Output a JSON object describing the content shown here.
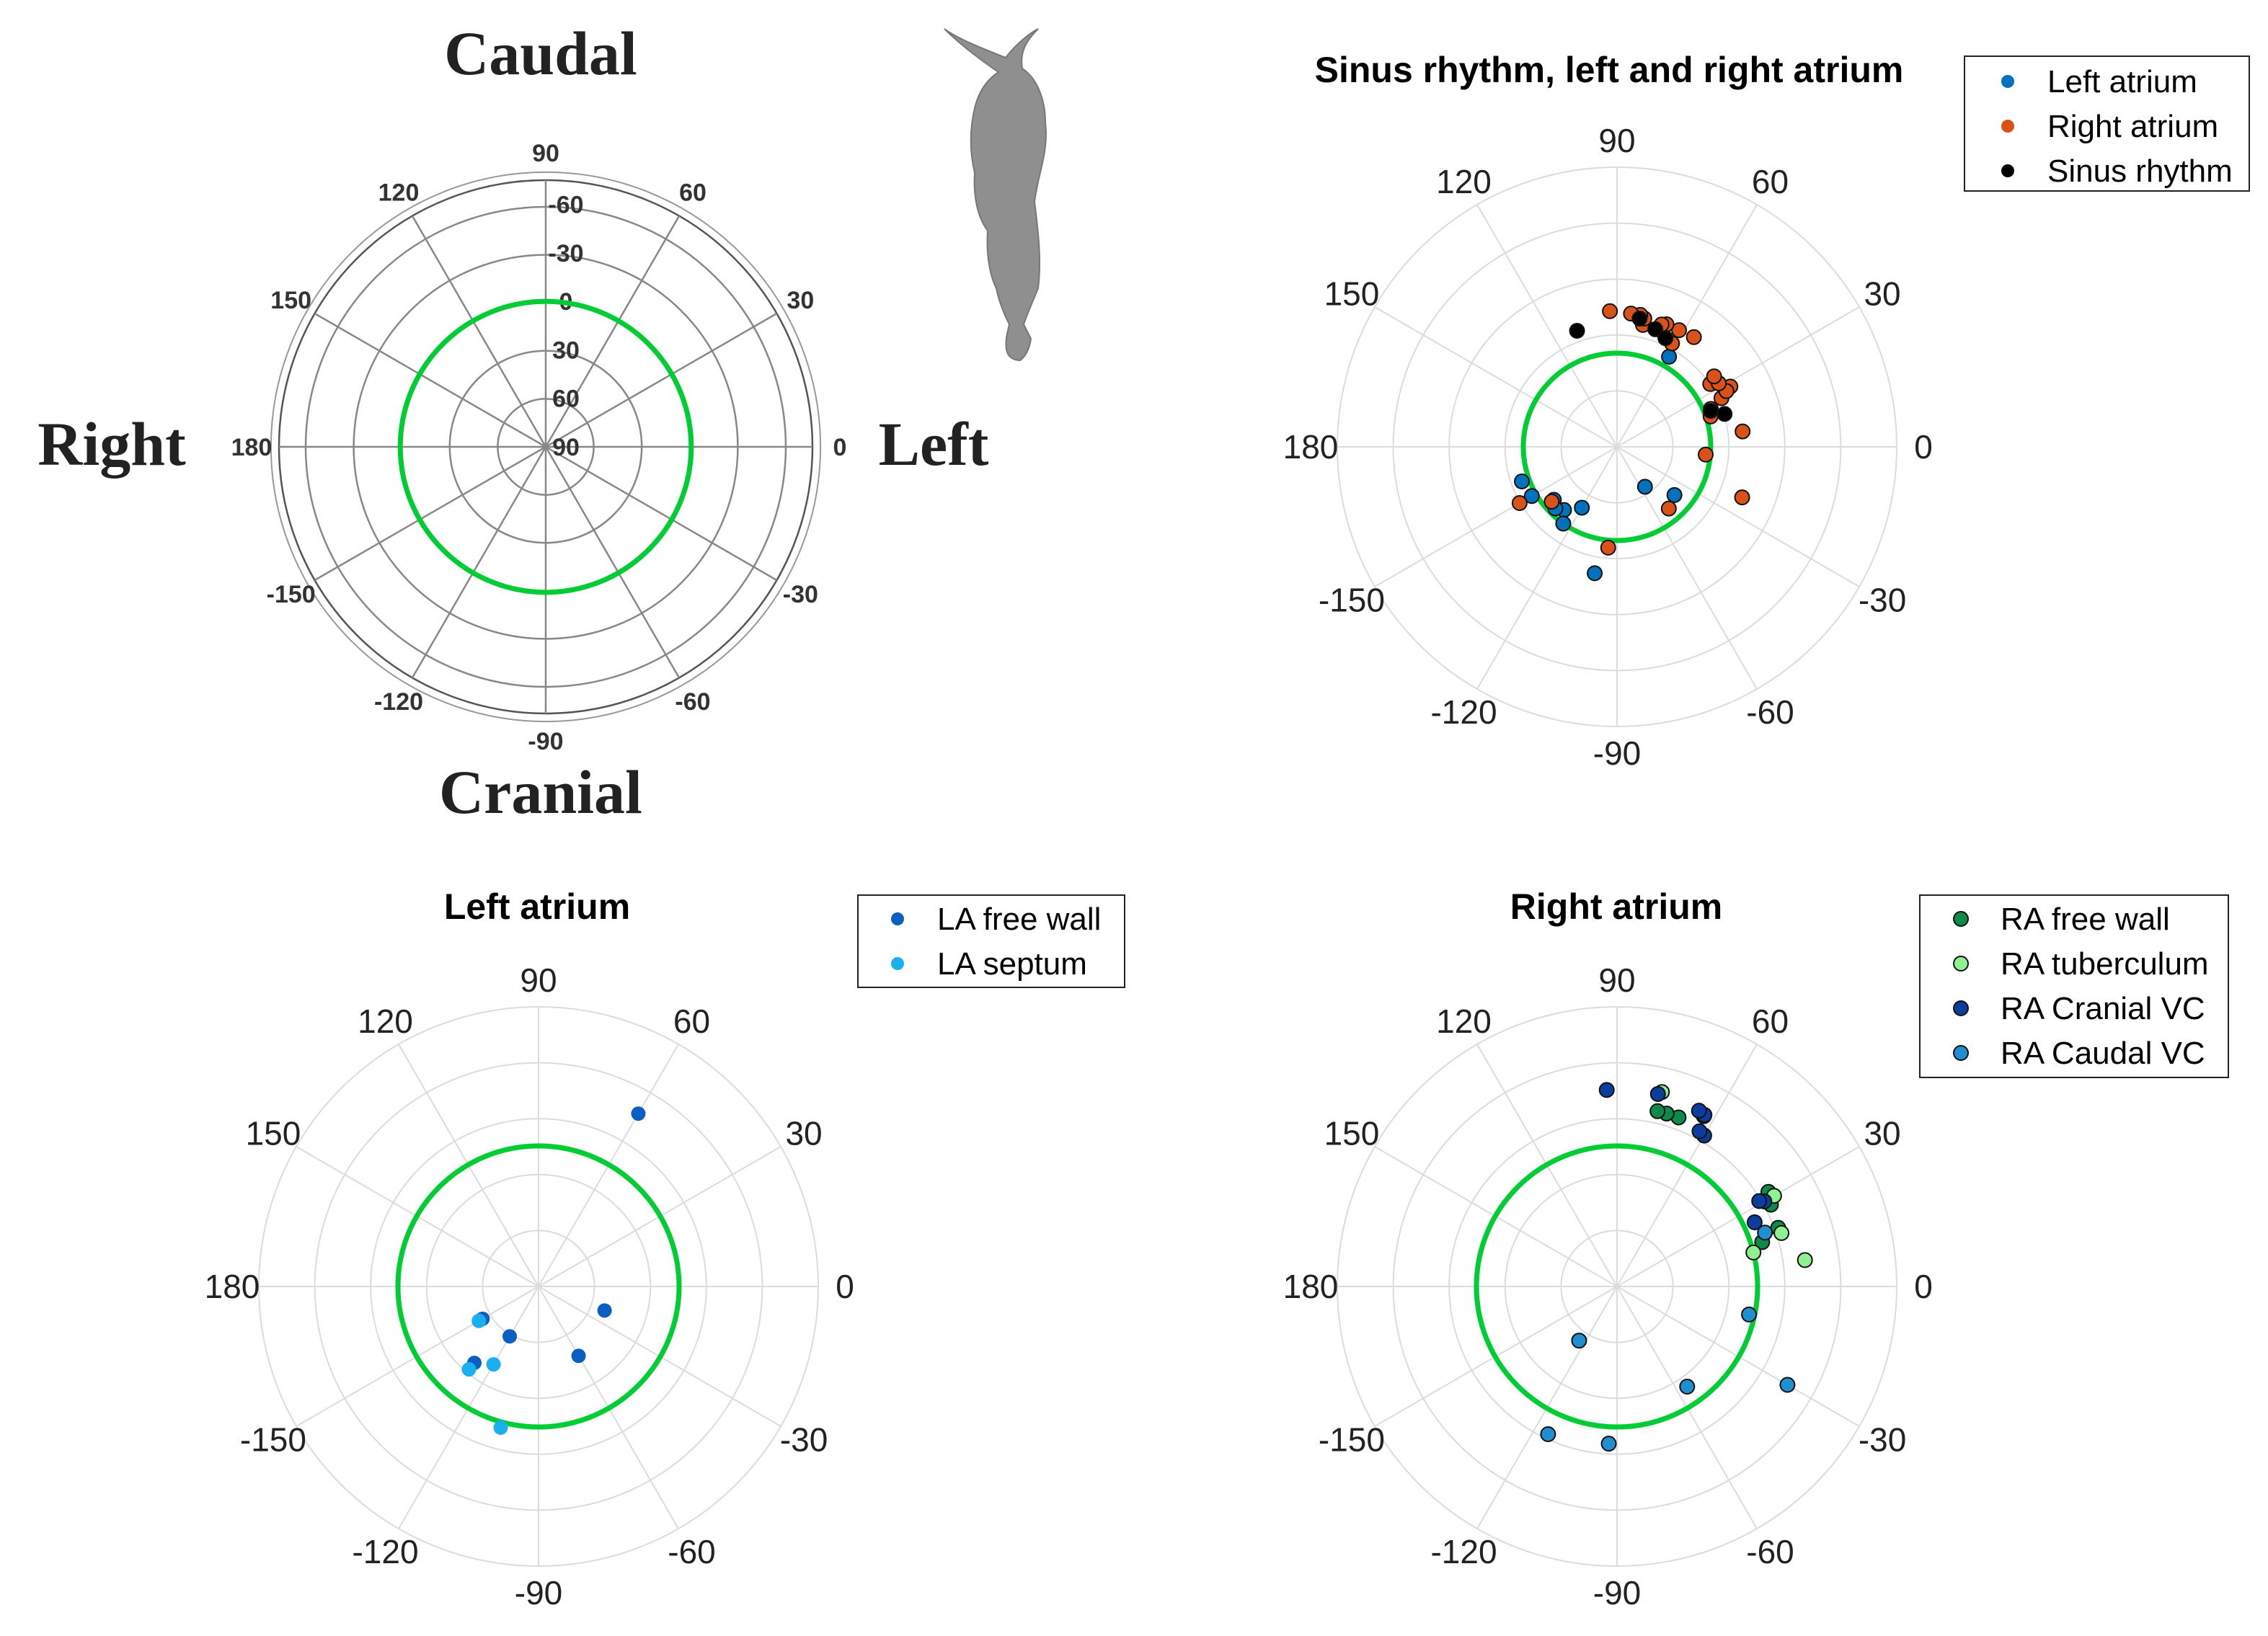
{
  "colors": {
    "green_circle": "#00cc33",
    "grid": "#dcdcdc",
    "grid_dark": "#666666",
    "left_atrium": "#0072bd",
    "right_atrium": "#d95319",
    "sinus_rhythm": "#000000",
    "la_free_wall": "#0b5fc2",
    "la_septum": "#1ab0ee",
    "ra_free_wall": "#0b8a4a",
    "ra_tuberculum": "#8ff08f",
    "ra_cranial_vc": "#0a3d9c",
    "ra_caudal_vc": "#1f8fd0",
    "horse": "#8f8f8f"
  },
  "orientation": {
    "top": "Caudal",
    "bottom": "Cranial",
    "left": "Right",
    "right": "Left",
    "horse_icon": "horse-icon"
  },
  "chart_data": [
    {
      "id": "reference",
      "type": "scatter",
      "coordinate_system": "polar",
      "title": "",
      "angle_tick_labels": [
        "0",
        "30",
        "60",
        "90",
        "120",
        "150",
        "180",
        "-150",
        "-120",
        "-90",
        "-60",
        "-30"
      ],
      "radial_tick_labels": [
        "-60",
        "-30",
        "0",
        "30",
        "60",
        "90"
      ],
      "reference_circle_radius_value": 0,
      "radial_range": [
        -75,
        90
      ],
      "series": []
    },
    {
      "id": "sinus",
      "type": "scatter",
      "coordinate_system": "polar",
      "title": "Sinus rhythm, left and right atrium",
      "angle_tick_labels": [
        "0",
        "30",
        "60",
        "90",
        "120",
        "150",
        "180",
        "-150",
        "-120",
        "-90",
        "-60",
        "-30"
      ],
      "legend_position": "top-right",
      "series": [
        {
          "name": "Left atrium",
          "color_key": "left_atrium",
          "points": [
            [
              -160,
              1.08
            ],
            [
              -150,
              1.05
            ],
            [
              -140,
              0.88
            ],
            [
              -130,
              0.88
            ],
            [
              -125,
              1.0
            ],
            [
              -135,
              0.93
            ],
            [
              -120,
              0.75
            ],
            [
              -100,
              1.37
            ],
            [
              -55,
              0.52
            ],
            [
              -40,
              0.8
            ],
            [
              60,
              1.11
            ],
            [
              70,
              1.33
            ]
          ]
        },
        {
          "name": "Right atrium",
          "color_key": "right_atrium",
          "points": [
            [
              -150,
              1.2
            ],
            [
              -140,
              0.91
            ],
            [
              -95,
              1.08
            ],
            [
              -50,
              0.86
            ],
            [
              -22,
              1.44
            ],
            [
              -5,
              0.95
            ],
            [
              7,
              1.35
            ],
            [
              18,
              1.05
            ],
            [
              22,
              1.08
            ],
            [
              28,
              1.32
            ],
            [
              25,
              1.23
            ],
            [
              28,
              1.37
            ],
            [
              27,
              1.31
            ],
            [
              32,
              1.28
            ],
            [
              34,
              1.2
            ],
            [
              32,
              1.28
            ],
            [
              36,
              1.28
            ],
            [
              55,
              1.43
            ],
            [
              62,
              1.25
            ],
            [
              62,
              1.41
            ],
            [
              68,
              1.41
            ],
            [
              70,
              1.39
            ],
            [
              78,
              1.33
            ],
            [
              78,
              1.4
            ],
            [
              80,
              1.43
            ],
            [
              84,
              1.43
            ],
            [
              93,
              1.45
            ]
          ]
        },
        {
          "name": "Sinus rhythm",
          "color_key": "sinus_rhythm",
          "points": [
            [
              109,
              1.31
            ],
            [
              80,
              1.39
            ],
            [
              72,
              1.32
            ],
            [
              66,
              1.27
            ],
            [
              17,
              1.2
            ],
            [
              21,
              1.07
            ]
          ]
        }
      ]
    },
    {
      "id": "left-atrium",
      "type": "scatter",
      "coordinate_system": "polar",
      "title": "Left atrium",
      "angle_tick_labels": [
        "0",
        "30",
        "60",
        "90",
        "120",
        "150",
        "180",
        "-150",
        "-120",
        "-90",
        "-60",
        "-30"
      ],
      "legend_position": "top-right",
      "series": [
        {
          "name": "LA free wall",
          "color_key": "la_free_wall",
          "points": [
            [
              60,
              1.42
            ],
            [
              -20,
              0.5
            ],
            [
              -60,
              0.57
            ],
            [
              -120,
              0.41
            ],
            [
              -150,
              0.46
            ],
            [
              -130,
              0.71
            ]
          ]
        },
        {
          "name": "LA septum",
          "color_key": "la_septum",
          "points": [
            [
              -130,
              0.77
            ],
            [
              -150,
              0.49
            ],
            [
              -120,
              0.64
            ],
            [
              -105,
              1.04
            ]
          ]
        }
      ]
    },
    {
      "id": "right-atrium",
      "type": "scatter",
      "coordinate_system": "polar",
      "title": "Right atrium",
      "angle_tick_labels": [
        "0",
        "30",
        "60",
        "90",
        "120",
        "150",
        "180",
        "-150",
        "-120",
        "-90",
        "-60",
        "-30"
      ],
      "legend_position": "top-right",
      "series": [
        {
          "name": "RA free wall",
          "color_key": "ra_free_wall",
          "points": [
            [
              17,
              1.08
            ],
            [
              20,
              1.22
            ],
            [
              28,
              1.24
            ],
            [
              32,
              1.27
            ],
            [
              63,
              1.36
            ],
            [
              70,
              1.28
            ],
            [
              74,
              1.28
            ],
            [
              77,
              1.28
            ]
          ]
        },
        {
          "name": "RA tuberculum",
          "color_key": "ra_tuberculum",
          "points": [
            [
              8,
              1.35
            ],
            [
              14,
              1.0
            ],
            [
              18,
              1.23
            ],
            [
              30,
              1.29
            ],
            [
              77,
              1.42
            ]
          ]
        },
        {
          "name": "RA Cranial VC",
          "color_key": "ra_cranial_vc",
          "points": [
            [
              25,
              1.08
            ],
            [
              30,
              1.21
            ],
            [
              31,
              1.18
            ],
            [
              60,
              1.24
            ],
            [
              62,
              1.25
            ],
            [
              63,
              1.37
            ],
            [
              65,
              1.38
            ],
            [
              78,
              1.4
            ],
            [
              93,
              1.4
            ]
          ]
        },
        {
          "name": "RA Caudal VC",
          "color_key": "ra_caudal_vc",
          "points": [
            [
              -30,
              1.4
            ],
            [
              -55,
              0.87
            ],
            [
              -125,
              0.47
            ],
            [
              -115,
              1.16
            ],
            [
              -93,
              1.12
            ],
            [
              -12,
              0.96
            ],
            [
              20,
              1.12
            ]
          ]
        }
      ]
    }
  ]
}
